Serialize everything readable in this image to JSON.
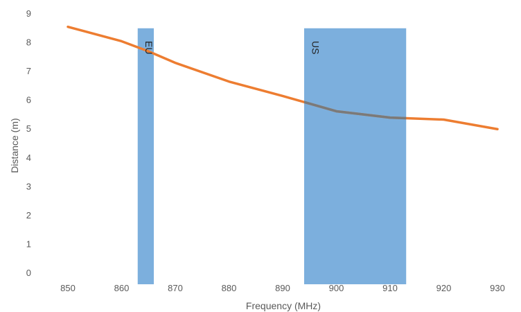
{
  "chart_data": {
    "type": "line",
    "title": "",
    "xlabel": "Frequency (MHz)",
    "ylabel": "Distance (m)",
    "xlim": [
      845,
      935
    ],
    "ylim": [
      0,
      9
    ],
    "x_ticks": [
      "850",
      "860",
      "870",
      "880",
      "890",
      "900",
      "910",
      "920",
      "930"
    ],
    "y_ticks": [
      "0",
      "1",
      "2",
      "3",
      "4",
      "5",
      "6",
      "7",
      "8",
      "9"
    ],
    "grid": false,
    "legend": "none",
    "series": [
      {
        "x": [
          850,
          860,
          865,
          870,
          880,
          890,
          900,
          910,
          920,
          930
        ],
        "y": [
          8.55,
          8.05,
          7.7,
          7.3,
          6.65,
          6.15,
          5.62,
          5.4,
          5.33,
          5.0
        ],
        "color": "#ED7D31"
      }
    ],
    "bands": [
      {
        "label": "EU",
        "x_start": 863,
        "x_end": 866,
        "y_top": 8.5,
        "color": "#5B9BD5"
      },
      {
        "label": "US",
        "x_start": 894,
        "x_end": 913,
        "y_top": 8.5,
        "color": "#5B9BD5"
      }
    ]
  }
}
